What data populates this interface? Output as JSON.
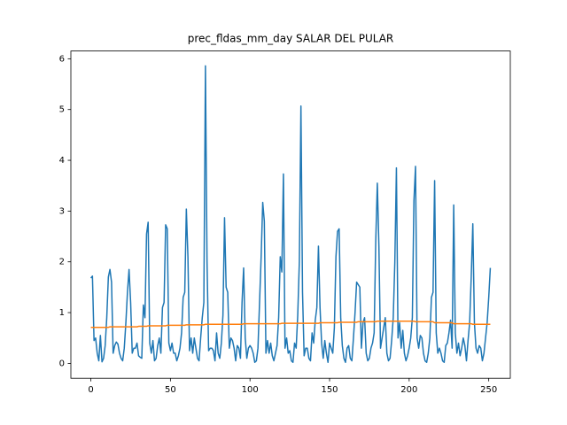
{
  "chart_data": {
    "type": "line",
    "title": "prec_fldas_mm_day SALAR DEL PULAR",
    "x": [
      0,
      1,
      2,
      3,
      4,
      5,
      6,
      7,
      8,
      9,
      10,
      11,
      12,
      13,
      14,
      15,
      16,
      17,
      18,
      19,
      20,
      21,
      22,
      23,
      24,
      25,
      26,
      27,
      28,
      29,
      30,
      31,
      32,
      33,
      34,
      35,
      36,
      37,
      38,
      39,
      40,
      41,
      42,
      43,
      44,
      45,
      46,
      47,
      48,
      49,
      50,
      51,
      52,
      53,
      54,
      55,
      56,
      57,
      58,
      59,
      60,
      61,
      62,
      63,
      64,
      65,
      66,
      67,
      68,
      69,
      70,
      71,
      72,
      73,
      74,
      75,
      76,
      77,
      78,
      79,
      80,
      81,
      82,
      83,
      84,
      85,
      86,
      87,
      88,
      89,
      90,
      91,
      92,
      93,
      94,
      95,
      96,
      97,
      98,
      99,
      100,
      101,
      102,
      103,
      104,
      105,
      106,
      107,
      108,
      109,
      110,
      111,
      112,
      113,
      114,
      115,
      116,
      117,
      118,
      119,
      120,
      121,
      122,
      123,
      124,
      125,
      126,
      127,
      128,
      129,
      130,
      131,
      132,
      133,
      134,
      135,
      136,
      137,
      138,
      139,
      140,
      141,
      142,
      143,
      144,
      145,
      146,
      147,
      148,
      149,
      150,
      151,
      152,
      153,
      154,
      155,
      156,
      157,
      158,
      159,
      160,
      161,
      162,
      163,
      164,
      165,
      166,
      167,
      168,
      169,
      170,
      171,
      172,
      173,
      174,
      175,
      176,
      177,
      178,
      179,
      180,
      181,
      182,
      183,
      184,
      185,
      186,
      187,
      188,
      189,
      190,
      191,
      192,
      193,
      194,
      195,
      196,
      197,
      198,
      199,
      200,
      201,
      202,
      203,
      204,
      205,
      206,
      207,
      208,
      209,
      210,
      211,
      212,
      213,
      214,
      215,
      216,
      217,
      218,
      219,
      220,
      221,
      222,
      223,
      224,
      225,
      226,
      227,
      228,
      229,
      230,
      231,
      232,
      233,
      234,
      235,
      236,
      237,
      238,
      239,
      240,
      241,
      242,
      243,
      244,
      245,
      246,
      247,
      248,
      249,
      250,
      251
    ],
    "series": [
      {
        "color": "#1f77b4",
        "values": [
          1.68,
          1.72,
          0.45,
          0.5,
          0.2,
          0.05,
          0.55,
          0.03,
          0.1,
          0.35,
          0.9,
          1.7,
          1.85,
          1.6,
          0.2,
          0.35,
          0.42,
          0.38,
          0.2,
          0.1,
          0.05,
          0.3,
          0.8,
          1.4,
          1.85,
          1.2,
          0.2,
          0.3,
          0.3,
          0.4,
          0.15,
          0.12,
          0.1,
          1.15,
          0.9,
          2.55,
          2.78,
          0.4,
          0.2,
          0.45,
          0.05,
          0.1,
          0.35,
          0.5,
          0.2,
          1.1,
          1.2,
          2.73,
          2.65,
          0.4,
          0.25,
          0.4,
          0.2,
          0.2,
          0.05,
          0.15,
          0.3,
          0.6,
          1.3,
          1.4,
          3.04,
          2.1,
          0.25,
          0.5,
          0.2,
          0.5,
          0.3,
          0.1,
          0.05,
          0.5,
          0.9,
          1.2,
          5.86,
          2.0,
          0.25,
          0.3,
          0.3,
          0.25,
          0.05,
          0.6,
          0.2,
          0.1,
          0.4,
          0.95,
          2.87,
          1.5,
          1.4,
          0.3,
          0.5,
          0.45,
          0.3,
          0.05,
          0.35,
          0.3,
          0.1,
          1.2,
          1.88,
          0.5,
          0.1,
          0.3,
          0.35,
          0.3,
          0.2,
          0.02,
          0.05,
          0.3,
          1.2,
          2.1,
          3.17,
          2.8,
          0.2,
          0.45,
          0.2,
          0.4,
          0.15,
          0.05,
          0.2,
          0.35,
          0.9,
          2.1,
          1.8,
          3.73,
          0.3,
          0.5,
          0.2,
          0.25,
          0.05,
          0.02,
          0.4,
          0.3,
          0.95,
          2.0,
          5.07,
          1.4,
          0.15,
          0.3,
          0.3,
          0.1,
          0.05,
          0.6,
          0.4,
          0.85,
          1.1,
          2.31,
          1.1,
          0.4,
          0.1,
          0.45,
          0.2,
          0.02,
          0.4,
          0.3,
          0.2,
          0.7,
          2.1,
          2.6,
          2.65,
          0.9,
          0.35,
          0.1,
          0.02,
          0.3,
          0.35,
          0.1,
          0.05,
          0.5,
          1.0,
          1.6,
          1.55,
          1.5,
          0.3,
          0.8,
          0.9,
          0.2,
          0.05,
          0.1,
          0.3,
          0.4,
          0.6,
          2.4,
          3.55,
          2.3,
          0.3,
          0.5,
          0.7,
          0.9,
          0.2,
          0.05,
          0.1,
          0.45,
          0.9,
          2.0,
          3.85,
          0.5,
          0.8,
          0.3,
          0.65,
          0.2,
          0.05,
          0.15,
          0.3,
          0.5,
          0.9,
          3.2,
          3.88,
          0.5,
          0.3,
          0.55,
          0.5,
          0.2,
          0.05,
          0.02,
          0.2,
          0.5,
          1.3,
          1.4,
          3.6,
          0.6,
          0.2,
          0.3,
          0.2,
          0.05,
          0.02,
          0.35,
          0.4,
          0.6,
          0.85,
          0.3,
          3.12,
          0.6,
          0.2,
          0.4,
          0.15,
          0.3,
          0.5,
          0.35,
          0.05,
          0.45,
          0.8,
          1.7,
          2.75,
          0.8,
          0.3,
          0.2,
          0.35,
          0.3,
          0.05,
          0.2,
          0.5,
          0.8,
          1.3,
          1.88
        ]
      },
      {
        "color": "#ff7f0e",
        "values": [
          0.71,
          0.71,
          0.71,
          0.71,
          0.71,
          0.71,
          0.71,
          0.71,
          0.71,
          0.71,
          0.71,
          0.71,
          0.72,
          0.72,
          0.72,
          0.72,
          0.72,
          0.72,
          0.72,
          0.72,
          0.72,
          0.72,
          0.72,
          0.72,
          0.72,
          0.72,
          0.72,
          0.72,
          0.72,
          0.72,
          0.73,
          0.73,
          0.73,
          0.73,
          0.73,
          0.73,
          0.74,
          0.74,
          0.74,
          0.74,
          0.74,
          0.74,
          0.74,
          0.74,
          0.74,
          0.74,
          0.74,
          0.74,
          0.75,
          0.75,
          0.75,
          0.75,
          0.75,
          0.75,
          0.75,
          0.75,
          0.75,
          0.75,
          0.75,
          0.75,
          0.76,
          0.76,
          0.76,
          0.76,
          0.76,
          0.76,
          0.76,
          0.76,
          0.76,
          0.76,
          0.76,
          0.76,
          0.77,
          0.77,
          0.77,
          0.77,
          0.77,
          0.77,
          0.77,
          0.77,
          0.77,
          0.77,
          0.77,
          0.77,
          0.77,
          0.77,
          0.77,
          0.77,
          0.77,
          0.77,
          0.77,
          0.77,
          0.77,
          0.77,
          0.77,
          0.77,
          0.78,
          0.78,
          0.78,
          0.78,
          0.78,
          0.78,
          0.78,
          0.78,
          0.78,
          0.78,
          0.78,
          0.78,
          0.78,
          0.78,
          0.78,
          0.78,
          0.78,
          0.78,
          0.78,
          0.78,
          0.78,
          0.78,
          0.78,
          0.78,
          0.79,
          0.79,
          0.79,
          0.79,
          0.79,
          0.79,
          0.79,
          0.79,
          0.79,
          0.79,
          0.79,
          0.79,
          0.79,
          0.79,
          0.79,
          0.79,
          0.79,
          0.79,
          0.79,
          0.79,
          0.79,
          0.79,
          0.79,
          0.79,
          0.8,
          0.8,
          0.8,
          0.8,
          0.8,
          0.8,
          0.8,
          0.8,
          0.8,
          0.8,
          0.8,
          0.8,
          0.81,
          0.81,
          0.81,
          0.81,
          0.81,
          0.81,
          0.81,
          0.81,
          0.81,
          0.81,
          0.81,
          0.81,
          0.82,
          0.82,
          0.82,
          0.82,
          0.82,
          0.82,
          0.82,
          0.82,
          0.82,
          0.82,
          0.82,
          0.82,
          0.83,
          0.83,
          0.83,
          0.83,
          0.83,
          0.83,
          0.83,
          0.83,
          0.83,
          0.83,
          0.83,
          0.83,
          0.83,
          0.83,
          0.83,
          0.83,
          0.83,
          0.83,
          0.83,
          0.83,
          0.83,
          0.83,
          0.83,
          0.83,
          0.82,
          0.82,
          0.82,
          0.82,
          0.82,
          0.82,
          0.82,
          0.82,
          0.82,
          0.82,
          0.82,
          0.82,
          0.8,
          0.8,
          0.8,
          0.8,
          0.8,
          0.8,
          0.8,
          0.8,
          0.8,
          0.8,
          0.8,
          0.8,
          0.78,
          0.78,
          0.78,
          0.78,
          0.78,
          0.78,
          0.78,
          0.78,
          0.78,
          0.78,
          0.78,
          0.78,
          0.77,
          0.77,
          0.77,
          0.77,
          0.77,
          0.77,
          0.77,
          0.77,
          0.77,
          0.77,
          0.77,
          0.77
        ]
      }
    ],
    "xlim": [
      -12.55,
      263.55
    ],
    "xticks": [
      0,
      50,
      100,
      150,
      200,
      250
    ],
    "ylim": [
      -0.293,
      6.153
    ],
    "yticks": [
      0,
      1,
      2,
      3,
      4,
      5,
      6
    ],
    "grid": false
  }
}
